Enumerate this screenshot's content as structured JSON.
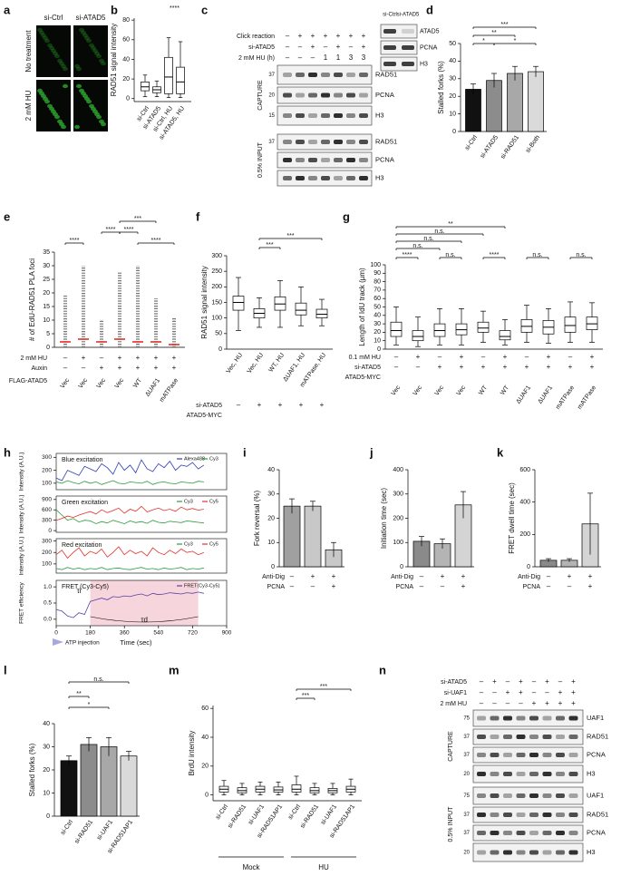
{
  "panels": [
    {
      "label": "a",
      "type": "image-grid",
      "columns": [
        "si-Ctrl",
        "si-ATAD5"
      ],
      "rows": [
        "No treatment",
        "2 mM HU"
      ]
    },
    {
      "label": "b",
      "type": "box",
      "y_label": "RAD51 signal intensity",
      "categories": [
        "si-Ctrl",
        "si-ATAD5",
        "si-Ctrl, HU",
        "si-ATAD5, HU"
      ],
      "ylim": [
        -3,
        82
      ],
      "yticks": [
        0,
        20,
        40,
        60,
        80
      ],
      "values": [
        [
          2,
          8,
          12,
          17,
          24
        ],
        [
          2,
          6,
          9,
          12,
          18
        ],
        [
          1,
          5,
          22,
          42,
          62
        ],
        [
          1,
          5,
          17,
          32,
          58
        ]
      ],
      "significance": [
        "****"
      ]
    },
    {
      "label": "c",
      "type": "blot",
      "rows": [
        {
          "name": "Click reaction",
          "signs": [
            "–",
            "+",
            "+",
            "+",
            "+",
            "+",
            "+"
          ]
        },
        {
          "name": "si-ATAD5",
          "signs": [
            "–",
            "–",
            "+",
            "–",
            "+",
            "–",
            "+"
          ]
        },
        {
          "name": "2 mM HU (h)",
          "signs": [
            "–",
            "–",
            "–",
            "1",
            "1",
            "3",
            "3"
          ]
        }
      ],
      "sections": [
        {
          "name": "CAPTURE",
          "blots": [
            "RAD51",
            "PCNA",
            "H3"
          ],
          "markers": [
            37,
            20,
            15
          ]
        },
        {
          "name": "0.5% INPUT",
          "blots": [
            "RAD51",
            "PCNA",
            "H3"
          ],
          "markers": [
            37
          ]
        }
      ],
      "inset": {
        "columns": [
          "si-Ctrl",
          "si-ATAD5"
        ],
        "blots": [
          "ATAD5",
          "PCNA",
          "H3"
        ]
      }
    },
    {
      "label": "d",
      "type": "bar",
      "y_label": "Stalled forks (%)",
      "categories": [
        "si-Ctrl",
        "si-ATAD5",
        "si-RAD51",
        "si-Both"
      ],
      "values": [
        24,
        29,
        33,
        34
      ],
      "errors": [
        3,
        4,
        4,
        3
      ],
      "colors": [
        "#111111",
        "#8c8c8c",
        "#a8a8a8",
        "#dadada"
      ],
      "ylim": [
        0,
        50
      ],
      "yticks": [
        0,
        10,
        20,
        30,
        40,
        50
      ],
      "significance": [
        "***",
        "**",
        "*",
        "*"
      ]
    },
    {
      "label": "e",
      "type": "dot-column",
      "y_label": "# of EdU-RAD51 PLA foci",
      "ylim": [
        0,
        35
      ],
      "yticks": [
        0,
        5,
        10,
        15,
        20,
        25,
        30,
        35
      ],
      "medians": [
        2,
        3,
        2,
        3,
        2,
        2,
        1
      ],
      "max": [
        19,
        30,
        10,
        28,
        30,
        18,
        11
      ],
      "median_color": "#e0302a",
      "rows": [
        {
          "name": "2 mM HU",
          "signs": [
            "–",
            "+",
            "–",
            "+",
            "+",
            "+",
            "+"
          ]
        },
        {
          "name": "Auxin",
          "signs": [
            "–",
            "–",
            "+",
            "+",
            "+",
            "+",
            "+"
          ]
        }
      ],
      "categories_label": "FLAG-ATAD5",
      "categories": [
        "Vec",
        "Vec",
        "Vec",
        "Vec",
        "WT",
        "ΔUAF1",
        "mATPase"
      ],
      "significance": [
        "****",
        "***",
        "****",
        "****",
        "****"
      ]
    },
    {
      "label": "f",
      "type": "box",
      "y_label": "RAD51 signal intensity",
      "categories": [
        "Vec, HU",
        "Vec, HU",
        "WT, HU",
        "ΔUAF1, HU",
        "mATPase, HU"
      ],
      "ylim": [
        0,
        300
      ],
      "yticks": [
        0,
        50,
        100,
        150,
        200,
        250,
        300
      ],
      "values": [
        [
          60,
          125,
          150,
          170,
          230
        ],
        [
          70,
          100,
          115,
          130,
          165
        ],
        [
          70,
          125,
          145,
          168,
          220
        ],
        [
          75,
          110,
          125,
          148,
          200
        ],
        [
          75,
          100,
          112,
          128,
          160
        ]
      ],
      "rows": [
        {
          "name": "si-ATAD5",
          "signs": [
            "–",
            "+",
            "+",
            "+",
            "+"
          ]
        },
        {
          "name": "ATAD5-MYC",
          "signs": []
        }
      ],
      "significance": [
        "***",
        "***"
      ]
    },
    {
      "label": "g",
      "type": "box",
      "y_label": "Length of IdU track (µm)",
      "categories": [
        "Vec",
        "Vec",
        "Vec",
        "Vec",
        "WT",
        "WT",
        "ΔUAF1",
        "ΔUAF1",
        "mATPase",
        "mATPase"
      ],
      "ylim": [
        0,
        100
      ],
      "yticks": [
        0,
        10,
        20,
        30,
        40,
        50,
        60,
        70,
        80,
        90,
        100
      ],
      "values": [
        [
          5,
          15,
          22,
          32,
          50
        ],
        [
          3,
          10,
          15,
          22,
          38
        ],
        [
          5,
          15,
          22,
          30,
          48
        ],
        [
          5,
          17,
          23,
          30,
          48
        ],
        [
          8,
          20,
          25,
          32,
          45
        ],
        [
          5,
          11,
          15,
          22,
          35
        ],
        [
          8,
          20,
          27,
          35,
          52
        ],
        [
          7,
          18,
          26,
          34,
          48
        ],
        [
          8,
          20,
          28,
          38,
          56
        ],
        [
          8,
          23,
          30,
          38,
          55
        ]
      ],
      "rows": [
        {
          "name": "0.1 mM HU",
          "signs": [
            "–",
            "+",
            "–",
            "+",
            "–",
            "+",
            "–",
            "+",
            "–",
            "+"
          ]
        },
        {
          "name": "si-ATAD5",
          "signs": [
            "–",
            "–",
            "+",
            "+",
            "+",
            "+",
            "+",
            "+",
            "+",
            "+"
          ]
        },
        {
          "name": "ATAD5-MYC",
          "signs": []
        }
      ],
      "significance": [
        "**",
        "n.s.",
        "n.s.",
        "n.s.",
        "****",
        "n.s.",
        "****",
        "n.s.",
        "n.s."
      ]
    },
    {
      "label": "h",
      "type": "traces",
      "x_label": "Time (sec)",
      "annotation": "ATP injection",
      "tau_i": "τi",
      "tau_d": "τd",
      "xlim": [
        0,
        900
      ],
      "xticks": [
        0,
        180,
        360,
        540,
        720,
        900
      ],
      "time": [
        0,
        30,
        60,
        90,
        120,
        150,
        180,
        210,
        240,
        270,
        300,
        330,
        360,
        390,
        420,
        450,
        480,
        510,
        540,
        570,
        600,
        630,
        660,
        690,
        720,
        750,
        780
      ],
      "subplots": [
        {
          "title": "Blue excitation",
          "y_label": "Intensity (A.U.)",
          "ylim": [
            50,
            330
          ],
          "yticks": [
            100,
            200,
            300
          ],
          "series": [
            {
              "name": "Alexa488",
              "color": "#2f3db5",
              "values": [
                140,
                120,
                200,
                180,
                160,
                230,
                210,
                190,
                250,
                220,
                170,
                260,
                200,
                240,
                180,
                280,
                210,
                190,
                250,
                220,
                270,
                200,
                240,
                230,
                260,
                210,
                240
              ]
            },
            {
              "name": "Cy3",
              "color": "#2a9a3a",
              "values": [
                110,
                100,
                120,
                105,
                95,
                115,
                100,
                110,
                90,
                105,
                120,
                100,
                95,
                110,
                105,
                100,
                115,
                90,
                105,
                110,
                100,
                95,
                110,
                105,
                100,
                115,
                110
              ]
            }
          ]
        },
        {
          "title": "Green excitation",
          "y_label": "Intensity (A.U.)",
          "ylim": [
            -50,
            1000
          ],
          "yticks": [
            0,
            300,
            600,
            900
          ],
          "series": [
            {
              "name": "Cy3",
              "color": "#2a9a3a",
              "values": [
                600,
                450,
                300,
                350,
                250,
                300,
                280,
                200,
                260,
                220,
                300,
                250,
                200,
                280,
                230,
                260,
                210,
                300,
                240,
                220,
                270,
                250,
                230,
                280,
                260,
                240,
                220
              ]
            },
            {
              "name": "Cy5",
              "color": "#e2302a",
              "values": [
                300,
                350,
                420,
                380,
                450,
                500,
                550,
                480,
                600,
                520,
                580,
                650,
                500,
                620,
                560,
                700,
                540,
                600,
                650,
                580,
                620,
                560,
                680,
                600,
                640,
                590,
                620
              ]
            }
          ]
        },
        {
          "title": "Red excitation",
          "y_label": "Intensity (A.U.)",
          "ylim": [
            20,
            320
          ],
          "yticks": [
            100,
            200,
            300
          ],
          "series": [
            {
              "name": "Cy3",
              "color": "#2a9a3a",
              "values": [
                60,
                50,
                70,
                55,
                65,
                50,
                60,
                55,
                70,
                50,
                60,
                65,
                55,
                50,
                60,
                70,
                55,
                60,
                50,
                65,
                55,
                60,
                70,
                50,
                60,
                55,
                65
              ]
            },
            {
              "name": "Cy5",
              "color": "#e2302a",
              "values": [
                180,
                220,
                150,
                200,
                240,
                170,
                210,
                190,
                230,
                160,
                200,
                250,
                180,
                220,
                190,
                210,
                170,
                240,
                200,
                180,
                220,
                190,
                230,
                200,
                210,
                180,
                200
              ]
            }
          ]
        },
        {
          "title": "FRET (Cy3-Cy5)",
          "y_label": "FRET efficiency",
          "ylim": [
            -0.2,
            1.2
          ],
          "yticks": [
            {
              "value": 0,
              "label": "0.0"
            },
            0.5,
            {
              "value": 1,
              "label": "1.0"
            }
          ],
          "series": [
            {
              "name": "FRET(Cy3-Cy5)",
              "color": "#5b3fa5",
              "values": [
                0.3,
                0.25,
                0.1,
                0.05,
                0.2,
                0.15,
                0.55,
                0.6,
                0.65,
                0.6,
                0.7,
                0.68,
                0.72,
                0.7,
                0.75,
                0.78,
                0.72,
                0.8,
                0.76,
                0.78,
                0.82,
                0.8,
                0.78,
                0.82,
                0.8,
                0.84,
                0.8
              ]
            }
          ]
        }
      ]
    },
    {
      "label": "i",
      "type": "bar",
      "y_label": "Fork reversal (%)",
      "values": [
        25,
        25,
        7
      ],
      "errors": [
        3,
        2,
        3
      ],
      "colors": [
        "#a0a0a0",
        "#c8c8c8",
        "#c8c8c8"
      ],
      "ylim": [
        0,
        40
      ],
      "yticks": [
        0,
        10,
        20,
        30,
        40
      ],
      "rows": [
        {
          "name": "Anti-Dig",
          "signs": [
            "–",
            "+",
            "+"
          ]
        },
        {
          "name": "PCNA",
          "signs": [
            "–",
            "–",
            "+"
          ]
        }
      ]
    },
    {
      "label": "j",
      "type": "bar",
      "y_label": "Initiation time (sec)",
      "values": [
        105,
        95,
        255
      ],
      "errors": [
        20,
        20,
        55
      ],
      "colors": [
        "#8a8a8a",
        "#b4b4b4",
        "#d4d4d4"
      ],
      "ylim": [
        0,
        400
      ],
      "yticks": [
        0,
        100,
        200,
        300,
        400
      ],
      "rows": [
        {
          "name": "Anti-Dig",
          "signs": [
            "–",
            "+",
            "+"
          ]
        },
        {
          "name": "PCNA",
          "signs": [
            "–",
            "–",
            "+"
          ]
        }
      ]
    },
    {
      "label": "k",
      "type": "bar",
      "y_label": "FRET dwell time (sec)",
      "values": [
        40,
        40,
        265
      ],
      "errors": [
        10,
        10,
        190
      ],
      "colors": [
        "#8a8a8a",
        "#b4b4b4",
        "#d4d4d4"
      ],
      "ylim": [
        0,
        600
      ],
      "yticks": [
        0,
        200,
        400,
        600
      ],
      "rows": [
        {
          "name": "Anti-Dig",
          "signs": [
            "–",
            "+",
            "+"
          ]
        },
        {
          "name": "PCNA",
          "signs": [
            "–",
            "–",
            "+"
          ]
        }
      ]
    },
    {
      "label": "l",
      "type": "bar",
      "y_label": "Stalled forks (%)",
      "categories": [
        "si-Ctrl",
        "si-RAD51",
        "si-UAF1",
        "si-RAD51AP1"
      ],
      "values": [
        24,
        31,
        30,
        26
      ],
      "errors": [
        2,
        3,
        4,
        2
      ],
      "colors": [
        "#111111",
        "#8c8c8c",
        "#a8a8a8",
        "#dadada"
      ],
      "ylim": [
        0,
        40
      ],
      "yticks": [
        0,
        10,
        20,
        30,
        40
      ],
      "significance": [
        "n.s.",
        "**",
        "*"
      ]
    },
    {
      "label": "m",
      "type": "box",
      "y_label": "BrdU intensity",
      "categories": [
        "si-Ctrl",
        "si-RAD51",
        "si-UAF1",
        "si-RAD51AP1",
        "si-Ctrl",
        "si-RAD51",
        "si-UAF1",
        "si-RAD51AP1"
      ],
      "ylim": [
        -4,
        62
      ],
      "yticks": [
        0,
        20,
        40,
        60
      ],
      "values": [
        [
          0,
          2,
          4,
          6,
          10
        ],
        [
          0,
          1.5,
          3,
          5,
          8
        ],
        [
          0,
          2,
          4,
          6,
          9
        ],
        [
          0,
          2,
          3.5,
          5.5,
          9
        ],
        [
          0,
          2,
          4,
          7,
          13
        ],
        [
          0,
          1.5,
          3,
          5,
          8
        ],
        [
          0,
          1.5,
          3,
          4.5,
          8
        ],
        [
          0,
          2,
          4,
          6,
          11
        ]
      ],
      "groups": [
        "Mock",
        "HU"
      ],
      "significance": [
        "***",
        "***"
      ]
    },
    {
      "label": "n",
      "type": "blot",
      "rows": [
        {
          "name": "si-ATAD5",
          "signs": [
            "–",
            "+",
            "–",
            "+",
            "–",
            "+",
            "–",
            "+"
          ]
        },
        {
          "name": "si-UAF1",
          "signs": [
            "–",
            "–",
            "+",
            "+",
            "–",
            "–",
            "+",
            "+"
          ]
        },
        {
          "name": "2 mM HU",
          "signs": [
            "–",
            "–",
            "–",
            "–",
            "+",
            "+",
            "+",
            "+"
          ]
        }
      ],
      "sections": [
        {
          "name": "CAPTURE",
          "blots": [
            "UAF1",
            "RAD51",
            "PCNA",
            "H3"
          ],
          "markers": [
            75,
            37,
            37,
            20
          ]
        },
        {
          "name": "0.5% INPUT",
          "blots": [
            "UAF1",
            "RAD51",
            "PCNA",
            "H3"
          ],
          "markers": [
            75,
            37,
            37,
            20
          ]
        }
      ]
    }
  ]
}
